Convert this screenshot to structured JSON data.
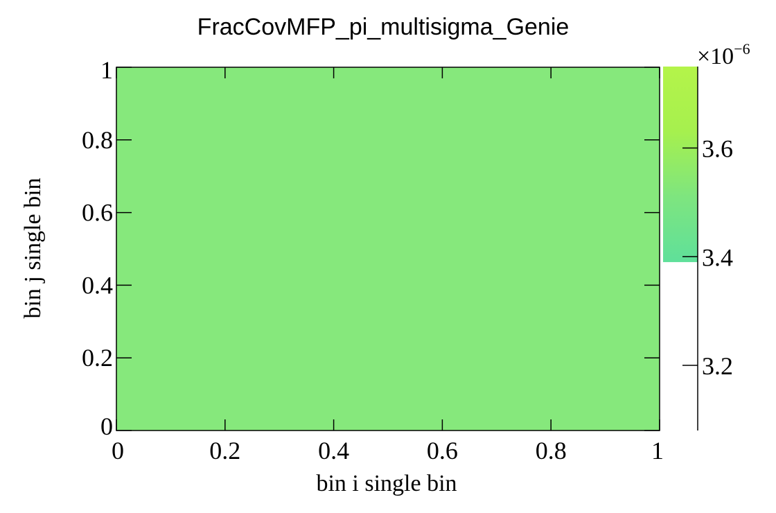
{
  "chart_data": {
    "type": "heatmap",
    "title": "FracCovMFP_pi_multisigma_Genie",
    "xlabel": "bin i single bin",
    "ylabel": "bin j single bin",
    "xlim": [
      0,
      1
    ],
    "ylim": [
      0,
      1
    ],
    "x_ticks": [
      "0",
      "0.2",
      "0.4",
      "0.6",
      "0.8",
      "1"
    ],
    "y_ticks": [
      "0",
      "0.2",
      "0.4",
      "0.6",
      "0.8",
      "1"
    ],
    "cells": [
      {
        "x": [
          0,
          1
        ],
        "y": [
          0,
          1
        ],
        "value": 3.5e-06
      }
    ],
    "cell_color": "#86e87c",
    "colorbar": {
      "multiplier": "×10",
      "exponent": "−6",
      "ticks": [
        "3.2",
        "3.4",
        "3.6"
      ],
      "range": [
        3.08,
        3.75
      ],
      "filled_range": [
        3.39,
        3.75
      ],
      "colors": [
        "#5fe09a",
        "#7ee57f",
        "#a6f04e",
        "#b4f44a"
      ]
    },
    "grid": false
  }
}
